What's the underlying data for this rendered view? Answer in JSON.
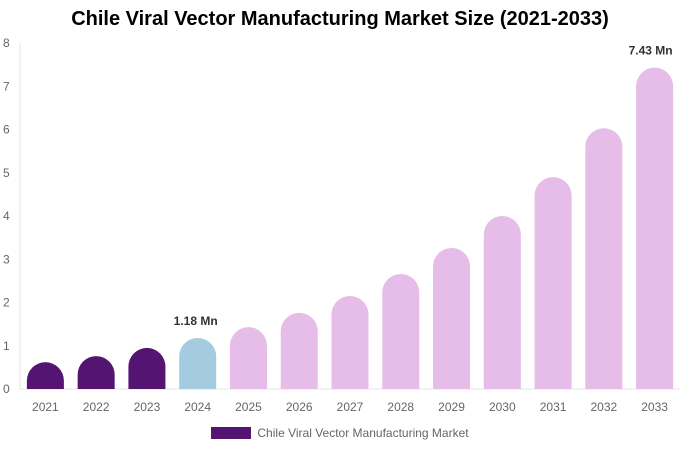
{
  "chart_data": {
    "type": "bar",
    "title": "Chile Viral Vector Manufacturing Market Size (2021-2033)",
    "categories": [
      "2021",
      "2022",
      "2023",
      "2024",
      "2025",
      "2026",
      "2027",
      "2028",
      "2029",
      "2030",
      "2031",
      "2032",
      "2033"
    ],
    "series": [
      {
        "name": "Chile Viral Vector Manufacturing Market",
        "values": [
          0.62,
          0.76,
          0.95,
          1.18,
          1.43,
          1.76,
          2.15,
          2.66,
          3.26,
          4.0,
          4.9,
          6.03,
          7.43
        ]
      }
    ],
    "data_labels": {
      "2024": "1.18 Mn",
      "2033": "7.43 Mn"
    },
    "ylim": [
      0,
      8
    ],
    "yticks": [
      0,
      1,
      2,
      3,
      4,
      5,
      6,
      7,
      8
    ],
    "xlabel": "",
    "ylabel": "",
    "grid": false,
    "legend_position": "bottom",
    "colors": {
      "historical": "#541472",
      "current": "#a4cbdf",
      "forecast": "#e6bce8"
    }
  }
}
